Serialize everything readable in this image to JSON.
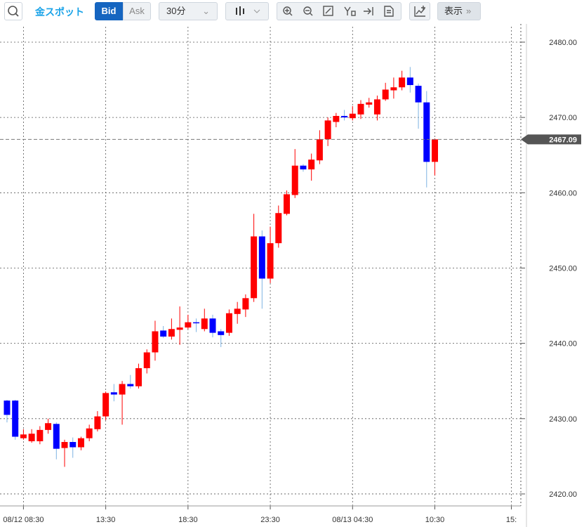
{
  "toolbar": {
    "symbol": "金スポット",
    "bid": "Bid",
    "ask": "Ask",
    "interval": "30分",
    "display": "表示"
  },
  "chart_data": {
    "type": "candlestick",
    "open": [
      2432.4,
      2432.4,
      2427.4,
      2427.0,
      2427.0,
      2428.5,
      2429.3,
      2426.1,
      2426.9,
      2426.2,
      2427.4,
      2428.6,
      2430.3,
      2433.5,
      2433.2,
      2434.6,
      2434.3,
      2436.7,
      2438.8,
      2441.7,
      2440.9,
      2441.8,
      2442.1,
      2442.8,
      2441.9,
      2443.3,
      2441.6,
      2441.4,
      2443.9,
      2444.5,
      2446.0,
      2454.2,
      2448.6,
      2453.3,
      2457.2,
      2459.7,
      2463.6,
      2463.1,
      2464.3,
      2467.1,
      2469.4,
      2470.2,
      2469.9,
      2470.4,
      2471.7,
      2470.4,
      2472.4,
      2473.6,
      2474.0,
      2475.3,
      2474.2,
      2472.0,
      2464.1
    ],
    "high": [
      2432.5,
      2432.5,
      2428.6,
      2428.6,
      2429.0,
      2430.0,
      2429.5,
      2427.2,
      2427.5,
      2427.6,
      2429.2,
      2431.0,
      2433.6,
      2434.6,
      2435.0,
      2435.8,
      2437.3,
      2439.2,
      2443.0,
      2442.3,
      2443.3,
      2444.9,
      2443.8,
      2443.3,
      2444.6,
      2443.8,
      2441.9,
      2444.5,
      2445.5,
      2446.5,
      2457.2,
      2455.0,
      2455.5,
      2458.3,
      2460.3,
      2465.8,
      2463.8,
      2465.2,
      2468.3,
      2470.0,
      2470.6,
      2471.0,
      2471.5,
      2472.3,
      2472.6,
      2472.9,
      2474.6,
      2475.3,
      2476.2,
      2476.7,
      2474.5,
      2473.5,
      2467.2
    ],
    "low": [
      2429.5,
      2427.2,
      2427.2,
      2426.8,
      2426.6,
      2428.0,
      2424.6,
      2423.6,
      2424.8,
      2425.8,
      2427.0,
      2428.3,
      2429.8,
      2432.3,
      2429.2,
      2434.0,
      2434.0,
      2436.0,
      2437.7,
      2440.7,
      2440.5,
      2439.8,
      2441.9,
      2441.5,
      2441.6,
      2440.8,
      2439.5,
      2441.0,
      2442.6,
      2443.5,
      2445.5,
      2444.6,
      2448.0,
      2452.7,
      2457.0,
      2459.3,
      2462.8,
      2461.6,
      2463.8,
      2466.2,
      2468.7,
      2469.6,
      2469.6,
      2469.8,
      2471.3,
      2469.6,
      2472.2,
      2472.5,
      2473.6,
      2473.3,
      2468.5,
      2460.7,
      2462.3
    ],
    "close": [
      2430.5,
      2427.6,
      2427.9,
      2428.0,
      2428.5,
      2429.4,
      2426.0,
      2426.9,
      2426.2,
      2427.4,
      2428.7,
      2430.3,
      2433.4,
      2433.2,
      2434.6,
      2434.3,
      2436.7,
      2438.8,
      2441.6,
      2440.9,
      2441.9,
      2442.1,
      2442.8,
      2442.7,
      2443.3,
      2441.4,
      2441.1,
      2444.0,
      2444.6,
      2446.0,
      2454.2,
      2448.6,
      2453.3,
      2457.3,
      2459.8,
      2463.6,
      2463.1,
      2464.4,
      2467.1,
      2469.6,
      2470.2,
      2470.0,
      2470.5,
      2471.8,
      2472.0,
      2472.4,
      2473.7,
      2474.0,
      2475.3,
      2474.3,
      2472.0,
      2464.1,
      2467.09
    ],
    "last_price": 2467.09,
    "up_color": "#ff0000",
    "down_color": "#0000ff",
    "down_wick_color": "#7db3e3",
    "xlim": [
      -0.85,
      62.45
    ],
    "ylim": [
      2418.41,
      2482.05
    ],
    "xticks": [
      {
        "value": 2,
        "label": "08/12 08:30"
      },
      {
        "value": 12,
        "label": "13:30"
      },
      {
        "value": 22,
        "label": "18:30"
      },
      {
        "value": 32,
        "label": "23:30"
      },
      {
        "value": 42,
        "label": "08/13 04:30"
      },
      {
        "value": 52,
        "label": "10:30"
      },
      {
        "value": 61.3,
        "label": "15:"
      }
    ],
    "yticks": [
      {
        "value": 2420,
        "label": "2420.00"
      },
      {
        "value": 2430,
        "label": "2430.00"
      },
      {
        "value": 2440,
        "label": "2440.00"
      },
      {
        "value": 2450,
        "label": "2450.00"
      },
      {
        "value": 2460,
        "label": "2460.00"
      },
      {
        "value": 2470,
        "label": "2470.00"
      },
      {
        "value": 2480,
        "label": "2480.00"
      }
    ],
    "grid": true
  }
}
